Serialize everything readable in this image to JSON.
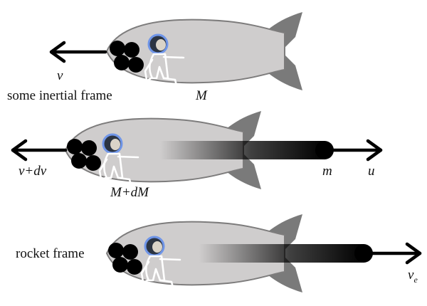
{
  "colors": {
    "hull": "#cfcdcd",
    "hull_outline": "#7d7c7c",
    "fins": "#7a7a7a",
    "fuel_balls": "#000000",
    "helmet_ring": "#6f95e8",
    "arrows": "#000000"
  },
  "panels": {
    "top": {
      "frame_label": "some inertial frame",
      "rocket_mass": "M",
      "rocket_velocity": "v",
      "icons": [
        "rocket",
        "astronaut",
        "fuel-balls",
        "left-arrow"
      ]
    },
    "middle": {
      "rocket_mass": "M+dM",
      "rocket_velocity": "v+dv",
      "exhaust_mass": "m",
      "exhaust_velocity": "u",
      "icons": [
        "rocket",
        "astronaut",
        "fuel-balls",
        "left-arrow",
        "exhaust-plume",
        "right-arrow"
      ]
    },
    "bottom": {
      "frame_label": "rocket frame",
      "exhaust_velocity_main": "v",
      "exhaust_velocity_sub": "e",
      "icons": [
        "rocket",
        "astronaut",
        "fuel-balls",
        "exhaust-plume",
        "right-arrow"
      ]
    }
  }
}
